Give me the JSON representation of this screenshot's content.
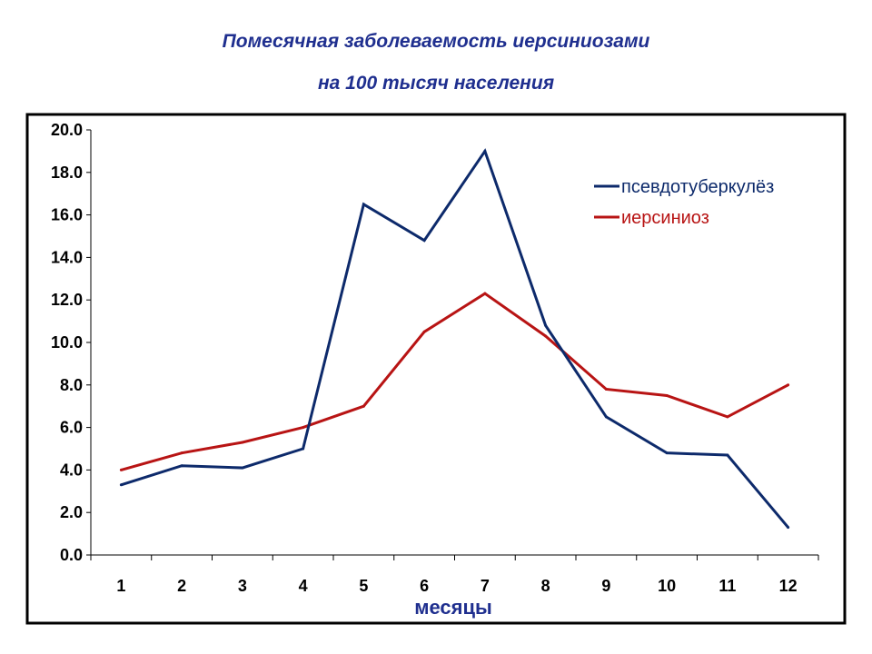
{
  "title": {
    "line1": "Помесячная  заболеваемость иерсиниозами",
    "line2": "на 100 тысяч населения"
  },
  "chart_data": {
    "type": "line",
    "categories": [
      "1",
      "2",
      "3",
      "4",
      "5",
      "6",
      "7",
      "8",
      "9",
      "10",
      "11",
      "12"
    ],
    "series": [
      {
        "name": "псевдотуберкулёз",
        "color": "#0d2a6b",
        "values": [
          3.3,
          4.2,
          4.1,
          5.0,
          16.5,
          14.8,
          19.0,
          10.8,
          6.5,
          4.8,
          4.7,
          1.3
        ]
      },
      {
        "name": "иерсиниоз",
        "color": "#b81414",
        "values": [
          4.0,
          4.8,
          5.3,
          6.0,
          7.0,
          10.5,
          12.3,
          10.3,
          7.8,
          7.5,
          6.5,
          8.0
        ]
      }
    ],
    "ylim": [
      0,
      20
    ],
    "yticks": [
      "0.0",
      "2.0",
      "4.0",
      "6.0",
      "8.0",
      "10.0",
      "12.0",
      "14.0",
      "16.0",
      "18.0",
      "20.0"
    ],
    "xlabel": "месяцы",
    "ylabel": "",
    "legend_position": "top-right",
    "grid": false
  }
}
